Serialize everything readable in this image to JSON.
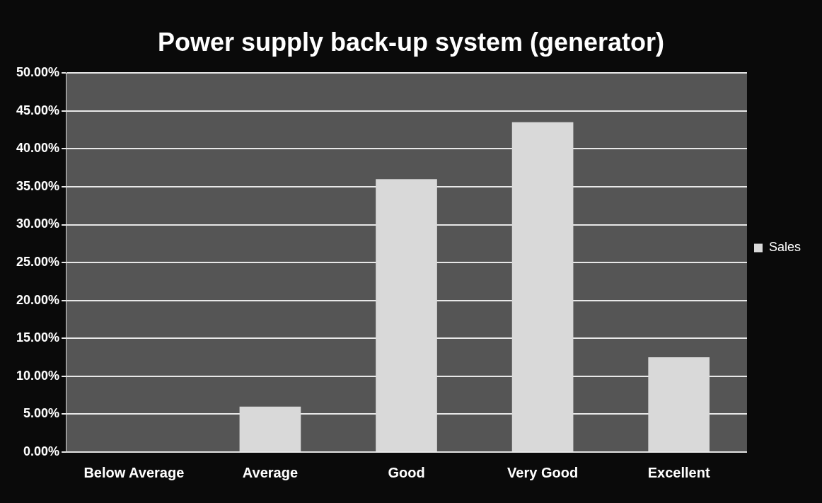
{
  "chart_data": {
    "type": "bar",
    "title": "Power supply back-up system (generator)",
    "categories": [
      "Below Average",
      "Average",
      "Good",
      "Very Good",
      "Excellent"
    ],
    "series": [
      {
        "name": "Sales",
        "color": "#d9d9d9",
        "values": [
          0,
          6,
          36,
          43.5,
          12.5
        ]
      }
    ],
    "ylim": [
      0,
      50
    ],
    "yticks": [
      {
        "value": 0,
        "label": "0.00%"
      },
      {
        "value": 5,
        "label": "5.00%"
      },
      {
        "value": 10,
        "label": "10.00%"
      },
      {
        "value": 15,
        "label": "15.00%"
      },
      {
        "value": 20,
        "label": "20.00%"
      },
      {
        "value": 25,
        "label": "25.00%"
      },
      {
        "value": 30,
        "label": "30.00%"
      },
      {
        "value": 35,
        "label": "35.00%"
      },
      {
        "value": 40,
        "label": "40.00%"
      },
      {
        "value": 45,
        "label": "45.00%"
      },
      {
        "value": 50,
        "label": "50.00%"
      }
    ],
    "grid": "y",
    "legend": "right"
  }
}
